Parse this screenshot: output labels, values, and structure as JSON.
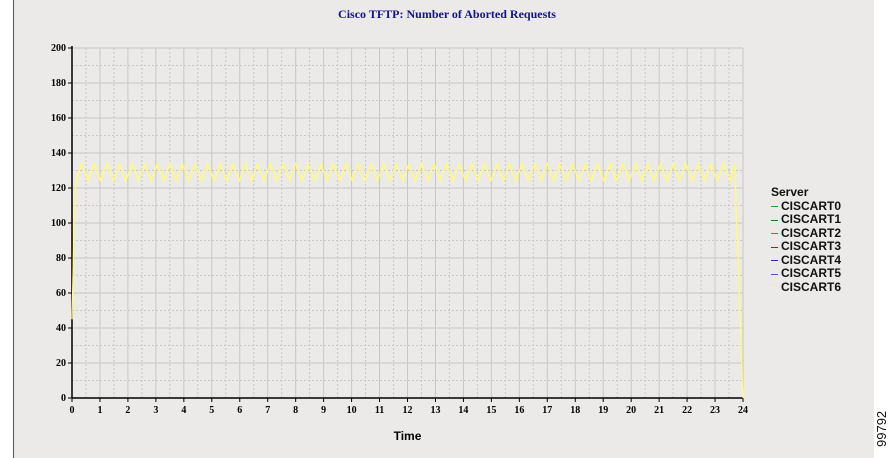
{
  "chart_data": {
    "type": "line",
    "title": "Cisco TFTP: Number of Aborted Requests",
    "xlabel": "Time",
    "ylabel": "",
    "xlim": [
      0,
      24
    ],
    "ylim": [
      0,
      200
    ],
    "x_ticks": [
      0,
      1,
      2,
      3,
      4,
      5,
      6,
      7,
      8,
      9,
      10,
      11,
      12,
      13,
      14,
      15,
      16,
      17,
      18,
      19,
      20,
      21,
      22,
      23,
      24
    ],
    "y_ticks": [
      0,
      20,
      40,
      60,
      80,
      100,
      120,
      140,
      160,
      180,
      200
    ],
    "grid": true,
    "legend_title": "Server",
    "legend_position": "right",
    "series": [
      {
        "name": "CISCART0",
        "color": "#2ca02c",
        "values": []
      },
      {
        "name": "CISCART1",
        "color": "#1a7a1a",
        "values": []
      },
      {
        "name": "CISCART2",
        "color": "#e0463c",
        "values": []
      },
      {
        "name": "CISCART3",
        "color": "#b01818",
        "values": []
      },
      {
        "name": "CISCART4",
        "color": "#2a2acc",
        "values": []
      },
      {
        "name": "CISCART5",
        "color": "#5858b8",
        "values": []
      },
      {
        "name": "CISCART6",
        "color": "#ffff66",
        "pattern": {
          "x_start": 0.35,
          "x_end": 23.7,
          "period": 0.45,
          "high": 134,
          "low": 124
        },
        "points": [
          [
            0,
            45
          ],
          [
            0.1,
            118
          ],
          [
            0.2,
            127
          ],
          [
            23.7,
            134
          ],
          [
            24,
            0
          ]
        ]
      }
    ]
  },
  "figure_id": "99792"
}
